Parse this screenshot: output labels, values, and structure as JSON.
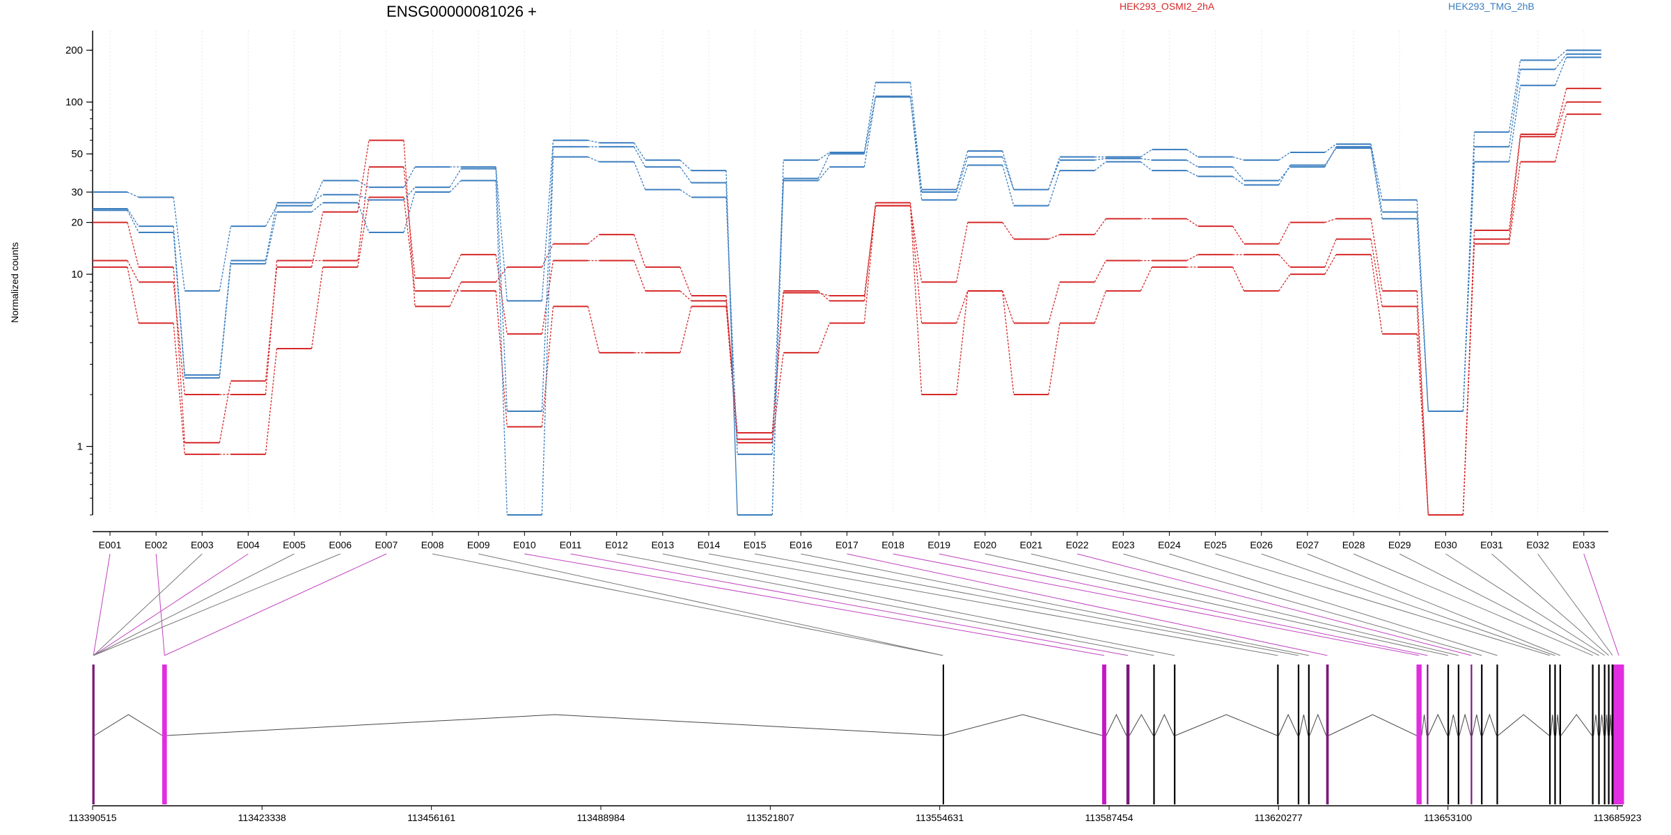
{
  "chart_data": [
    {
      "type": "line",
      "title": "ENSG00000081026 +",
      "ylabel": "Normalized counts",
      "yscale": "log",
      "ylim": [
        0.4,
        260
      ],
      "yticks": [
        1,
        10,
        20,
        30,
        50,
        100,
        200
      ],
      "legend": [
        {
          "name": "HEK293_OSMI2_2hA",
          "color": "#d62728"
        },
        {
          "name": "HEK293_TMG_2hB",
          "color": "#3a7dbf"
        }
      ],
      "categories": [
        "E001",
        "E002",
        "E003",
        "E004",
        "E005",
        "E006",
        "E007",
        "E008",
        "E009",
        "E010",
        "E011",
        "E012",
        "E013",
        "E014",
        "E015",
        "E016",
        "E017",
        "E018",
        "E019",
        "E020",
        "E021",
        "E022",
        "E023",
        "E024",
        "E025",
        "E026",
        "E027",
        "E028",
        "E029",
        "E030",
        "E031",
        "E032",
        "E033"
      ],
      "series": [
        {
          "group": "red",
          "color": "#d62728",
          "values": [
            20,
            11,
            1.05,
            2.4,
            11,
            23,
            60,
            6.5,
            9,
            11,
            15,
            17,
            11,
            7.5,
            1.1,
            7.8,
            7.5,
            25,
            9,
            20,
            16,
            17,
            21,
            21,
            19,
            15,
            20,
            21,
            8,
            0.4,
            18,
            65,
            120
          ]
        },
        {
          "group": "red",
          "color": "#d62728",
          "values": [
            12,
            9,
            2,
            2,
            12,
            12,
            42,
            9.5,
            13,
            4.5,
            12,
            12,
            8,
            7,
            1.2,
            8,
            7,
            26,
            5.2,
            8,
            5.2,
            9,
            12,
            12,
            13,
            13,
            11,
            16,
            6.5,
            0.4,
            16,
            63,
            100
          ]
        },
        {
          "group": "red",
          "color": "#d62728",
          "values": [
            11,
            5.2,
            0.9,
            0.9,
            3.7,
            11,
            28,
            8,
            8,
            1.3,
            6.5,
            3.5,
            3.5,
            6.5,
            1.05,
            3.5,
            5.2,
            25,
            2,
            8,
            2,
            5.2,
            8,
            11,
            11,
            8,
            10,
            13,
            4.5,
            0.4,
            15,
            45,
            85
          ]
        },
        {
          "group": "blue",
          "color": "#3a7dbf",
          "values": [
            30,
            28,
            8,
            19,
            25,
            35,
            32,
            42,
            42,
            7,
            60,
            58,
            46,
            40,
            0.4,
            46,
            51,
            130,
            31,
            52,
            31,
            48,
            48,
            53,
            48,
            46,
            51,
            57,
            27,
            1.6,
            67,
            175,
            200
          ]
        },
        {
          "group": "blue",
          "color": "#3a7dbf",
          "values": [
            24,
            19,
            2.6,
            12,
            26,
            29,
            27,
            32,
            41,
            1.6,
            55,
            55,
            42,
            34,
            0.4,
            36,
            50,
            108,
            30,
            48,
            31,
            46,
            47,
            46,
            42,
            35,
            42,
            55,
            23,
            1.6,
            55,
            155,
            190
          ]
        },
        {
          "group": "blue",
          "color": "#3a7dbf",
          "values": [
            23.5,
            17.5,
            2.5,
            11.5,
            23,
            26,
            17.5,
            30,
            35,
            0.4,
            48,
            45,
            31,
            28,
            0.9,
            35,
            42,
            107,
            27,
            43,
            25,
            40,
            45,
            40,
            37,
            33,
            43,
            54,
            21,
            1.6,
            45,
            125,
            182
          ]
        }
      ]
    },
    {
      "type": "gene-model",
      "xlabels": [
        "113390515",
        "113423338",
        "113456161",
        "113488984",
        "113521807",
        "113554631",
        "113587454",
        "113620277",
        "113653100",
        "113685923"
      ],
      "exons": [
        {
          "start": 113390450,
          "end": 113390900,
          "color": "#7a1a7a",
          "linked": "E001"
        },
        {
          "start": 113404000,
          "end": 113404900,
          "color": "#e02ee0",
          "linked": "E002"
        },
        {
          "start": 113555200,
          "end": 113555300,
          "color": "#000000",
          "linked": "E008"
        },
        {
          "start": 113586100,
          "end": 113586900,
          "color": "#c418c4",
          "linked": "E010"
        },
        {
          "start": 113590800,
          "end": 113591400,
          "color": "#7a1a7a",
          "linked": "E011"
        },
        {
          "start": 113596000,
          "end": 113596300,
          "color": "#000000",
          "linked": "E012"
        },
        {
          "start": 113600000,
          "end": 113600300,
          "color": "#000000",
          "linked": "E013"
        },
        {
          "start": 113620000,
          "end": 113620300,
          "color": "#000000",
          "linked": "E014"
        },
        {
          "start": 113624000,
          "end": 113624300,
          "color": "#000000",
          "linked": "E015"
        },
        {
          "start": 113626000,
          "end": 113626300,
          "color": "#000000",
          "linked": "E016"
        },
        {
          "start": 113629500,
          "end": 113630000,
          "color": "#7a1a7a",
          "linked": "E017"
        },
        {
          "start": 113647000,
          "end": 113648000,
          "color": "#e02ee0",
          "linked": "E018"
        },
        {
          "start": 113649000,
          "end": 113649300,
          "color": "#7a1a7a",
          "linked": "E019"
        },
        {
          "start": 113653000,
          "end": 113653300,
          "color": "#000000",
          "linked": "E020"
        },
        {
          "start": 113655000,
          "end": 113655300,
          "color": "#000000",
          "linked": "E021"
        },
        {
          "start": 113657500,
          "end": 113657800,
          "color": "#7a1a7a",
          "linked": "E022"
        },
        {
          "start": 113659500,
          "end": 113659800,
          "color": "#000000",
          "linked": "E023"
        },
        {
          "start": 113662500,
          "end": 113662800,
          "color": "#000000",
          "linked": "E024"
        },
        {
          "start": 113672700,
          "end": 113673000,
          "color": "#000000",
          "linked": "E025"
        },
        {
          "start": 113673700,
          "end": 113674000,
          "color": "#000000",
          "linked": "E026"
        },
        {
          "start": 113674700,
          "end": 113675000,
          "color": "#000000",
          "linked": "E027"
        },
        {
          "start": 113681000,
          "end": 113681300,
          "color": "#000000",
          "linked": "E028"
        },
        {
          "start": 113682200,
          "end": 113682500,
          "color": "#000000",
          "linked": "E029"
        },
        {
          "start": 113683300,
          "end": 113683600,
          "color": "#000000",
          "linked": "E030"
        },
        {
          "start": 113684100,
          "end": 113684400,
          "color": "#000000",
          "linked": "E031"
        },
        {
          "start": 113684800,
          "end": 113685200,
          "color": "#000000",
          "linked": "E032"
        },
        {
          "start": 113685200,
          "end": 113687200,
          "color": "#e02ee0",
          "linked": "E033"
        }
      ]
    }
  ]
}
